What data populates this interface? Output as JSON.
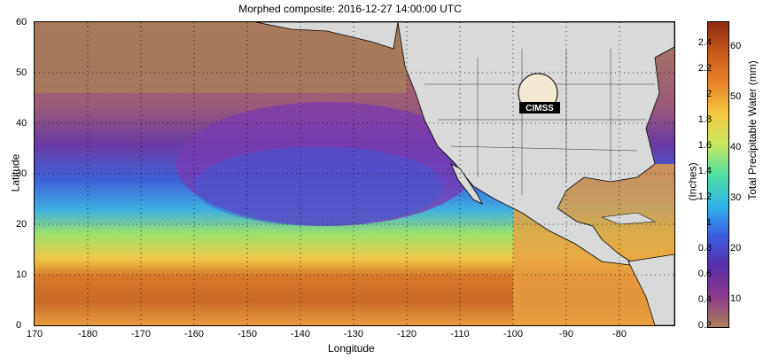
{
  "title": "Morphed composite: 2016-12-27 14:00:00 UTC",
  "axes": {
    "xlabel": "Longitude",
    "ylabel": "Latitude",
    "xticks": [
      "170",
      "-180",
      "-170",
      "-160",
      "-150",
      "-140",
      "-130",
      "-120",
      "-110",
      "-100",
      "-90",
      "-80"
    ],
    "yticks": [
      "60",
      "50",
      "40",
      "30",
      "20",
      "10",
      "0"
    ]
  },
  "colorbar": {
    "inches_label": "(Inches)",
    "mm_label": "Total Precipitable Water (mm)",
    "inch_ticks": [
      "2.4",
      "2.2",
      "2",
      "1.8",
      "1.6",
      "1.4",
      "1.2",
      "1",
      "0.8",
      "0.6",
      "0.4",
      "0.2"
    ],
    "mm_ticks": [
      "60",
      "50",
      "40",
      "30",
      "20",
      "10"
    ],
    "colors": [
      "#ad7f5b",
      "#8c3a8c",
      "#5a2fa8",
      "#3a5fe0",
      "#2fb5e8",
      "#4fe0a0",
      "#c8e860",
      "#f5c840",
      "#e8842a",
      "#c85a1a",
      "#8c2a10"
    ]
  },
  "logo": {
    "text": "CIMSS"
  }
}
